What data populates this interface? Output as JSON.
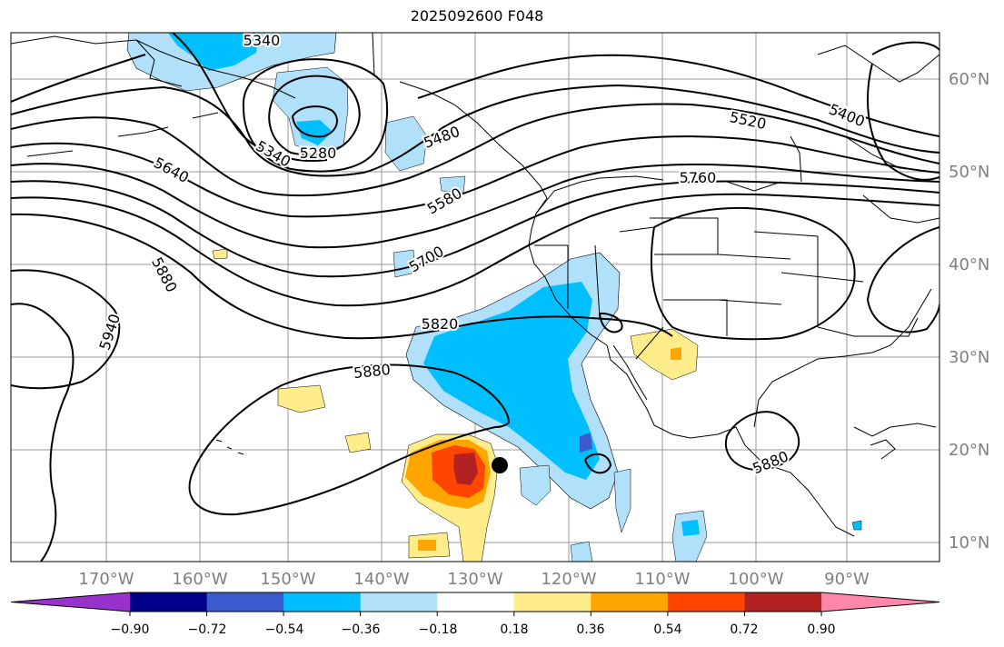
{
  "title": "2025092600 F048",
  "colors": {
    "ocean": "#ffffff",
    "grid": "#888888",
    "contour": "#000000",
    "coast": "#000000",
    "axis_label": "#7f7f7f",
    "marker": "#000000"
  },
  "lon_ticks": [
    "170°W",
    "160°W",
    "150°W",
    "140°W",
    "130°W",
    "120°W",
    "110°W",
    "100°W",
    "90°W"
  ],
  "lat_ticks": [
    "60°N",
    "50°N",
    "40°N",
    "30°N",
    "20°N",
    "10°N"
  ],
  "contour_labels": [
    "5340",
    "5340",
    "5280",
    "5480",
    "5520",
    "5400",
    "5640",
    "5580",
    "5760",
    "5700",
    "5880",
    "5940",
    "5820",
    "5880",
    "5880"
  ],
  "colorbar": {
    "tick_labels": [
      "−0.90",
      "−0.72",
      "−0.54",
      "−0.36",
      "−0.18",
      "0.18",
      "0.36",
      "0.54",
      "0.72",
      "0.90"
    ],
    "bins": [
      {
        "color": "#9932cc"
      },
      {
        "color": "#00008b"
      },
      {
        "color": "#3a5bcd"
      },
      {
        "color": "#00bfff"
      },
      {
        "color": "#b0e0fa"
      },
      {
        "color": "#ffffff"
      },
      {
        "color": "#ffec8b"
      },
      {
        "color": "#ffa500"
      },
      {
        "color": "#ff4500"
      },
      {
        "color": "#b22222"
      },
      {
        "color": "#ff88aa"
      }
    ]
  },
  "storm_marker": {
    "label": "storm center"
  }
}
